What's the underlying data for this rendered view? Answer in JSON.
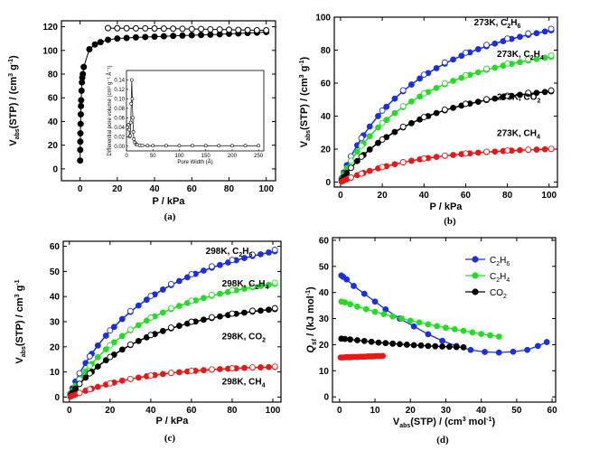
{
  "chart_data": [
    {
      "id": "a",
      "panel_label": "(a)",
      "type": "scatter",
      "xlabel": "P / kPa",
      "ylabel_main": "V",
      "ylabel_sub": "abs",
      "ylabel_rest": "(STP) / (cm",
      "ylabel_sup1": "3",
      "ylabel_mid": " g",
      "ylabel_sup2": "-1",
      "ylabel_end": ")",
      "xlim": [
        -10,
        105
      ],
      "ylim": [
        -10,
        125
      ],
      "xticks": [
        0,
        20,
        40,
        60,
        80,
        100
      ],
      "yticks": [
        0,
        20,
        40,
        60,
        80,
        100,
        120
      ],
      "series": [
        {
          "kind": "adsorption",
          "marker": "filled",
          "color": "#000000",
          "x": [
            0.05,
            0.1,
            0.15,
            0.2,
            0.3,
            0.4,
            0.5,
            0.6,
            0.8,
            1.0,
            1.2,
            1.5,
            2,
            5,
            8,
            11,
            15,
            20,
            25,
            30,
            35,
            40,
            45,
            50,
            55,
            60,
            65,
            70,
            75,
            80,
            85,
            90,
            95,
            100
          ],
          "y": [
            7,
            16,
            23,
            30,
            38,
            46,
            53,
            58,
            66,
            73,
            77,
            80,
            86,
            101,
            105,
            107,
            109,
            110,
            110.5,
            111,
            111.3,
            111.6,
            111.9,
            112.2,
            112.5,
            112.8,
            113,
            113.3,
            113.6,
            114,
            114.3,
            114.7,
            115,
            115.5
          ]
        },
        {
          "kind": "desorption",
          "marker": "open",
          "color": "#000000",
          "x": [
            100,
            95,
            90,
            85,
            80,
            75,
            70,
            65,
            60,
            55,
            50,
            45,
            40,
            35,
            30,
            25,
            20,
            15
          ],
          "y": [
            117,
            117,
            117.2,
            117.3,
            117.5,
            117.7,
            117.8,
            118,
            118,
            118.2,
            118.3,
            118.4,
            118.5,
            118.6,
            118.6,
            118.7,
            118.7,
            118.8
          ]
        }
      ],
      "inset": {
        "xlabel": "Pore Width (Å)",
        "ylabel": "Differential pore volume (cm³ g⁻¹ Å⁻¹)",
        "xlim": [
          0,
          260
        ],
        "ylim": [
          -0.01,
          0.16
        ],
        "xticks": [
          0,
          50,
          100,
          150,
          200,
          250
        ],
        "yticks": [
          0.0,
          0.02,
          0.04,
          0.06,
          0.08,
          0.1,
          0.12,
          0.14
        ],
        "x": [
          2,
          4,
          5,
          6,
          7,
          8,
          9,
          10,
          11,
          12,
          13,
          14,
          16,
          18,
          20,
          25,
          30,
          40,
          50,
          75,
          100,
          125,
          150,
          175,
          200,
          225,
          250
        ],
        "y": [
          0.04,
          0.045,
          0.035,
          0.02,
          0.022,
          0.05,
          0.09,
          0.14,
          0.1,
          0.06,
          0.03,
          0.015,
          0.008,
          0.004,
          0.003,
          0.002,
          0.0015,
          0.001,
          0.001,
          0.001,
          0.001,
          0.001,
          0.001,
          0.001,
          0.001,
          0.001,
          0.001
        ]
      }
    },
    {
      "id": "b",
      "panel_label": "(b)",
      "type": "line",
      "xlabel": "P / kPa",
      "ylabel_main": "V",
      "ylabel_sub": "abs",
      "ylabel_rest": "(STP) / (cm",
      "ylabel_sup1": "3",
      "ylabel_mid": " g",
      "ylabel_sup2": "-1",
      "ylabel_end": ")",
      "xlim": [
        -3,
        104
      ],
      "ylim": [
        -3,
        100
      ],
      "xticks": [
        0,
        20,
        40,
        60,
        80,
        100
      ],
      "yticks": [
        0,
        20,
        40,
        60,
        80,
        100
      ],
      "series": [
        {
          "label_pre": "273K, C",
          "label_sub": "2",
          "label_post": "H",
          "label_sub2": "6",
          "color": "#1a2fe0",
          "cap": 92,
          "k": 0.0155,
          "n": 0.86,
          "xmax": 101,
          "ann_x": 64,
          "ann_y": 95
        },
        {
          "label_pre": "273K, C",
          "label_sub": "2",
          "label_post": "H",
          "label_sub2": "4",
          "color": "#22dd22",
          "cap": 76,
          "k": 0.0155,
          "n": 0.86,
          "xmax": 101,
          "ann_x": 75,
          "ann_y": 76
        },
        {
          "label_pre": "273K, CO",
          "label_sub": "2",
          "label_post": "",
          "label_sub2": "",
          "color": "#000000",
          "cap": 55,
          "k": 0.0135,
          "n": 0.92,
          "xmax": 101,
          "ann_x": 75,
          "ann_y": 50
        },
        {
          "label_pre": "273K, CH",
          "label_sub": "4",
          "label_post": "",
          "label_sub2": "",
          "color": "#e81818",
          "cap": 20,
          "k": 0.0105,
          "n": 1.0,
          "xmax": 101,
          "ann_x": 75,
          "ann_y": 28
        }
      ]
    },
    {
      "id": "c",
      "panel_label": "(c)",
      "type": "line",
      "xlabel": "P / kPa",
      "ylabel_main": "V",
      "ylabel_sub": "abs",
      "ylabel_rest": "(STP) / cm",
      "ylabel_sup1": "3",
      "ylabel_mid": " g",
      "ylabel_sup2": "-1",
      "ylabel_end": "",
      "xlim": [
        -3,
        104
      ],
      "ylim": [
        -2,
        62
      ],
      "xticks": [
        0,
        20,
        40,
        60,
        80,
        100
      ],
      "yticks": [
        0,
        10,
        20,
        30,
        40,
        50,
        60
      ],
      "series": [
        {
          "label_pre": "298K, C",
          "label_sub": "2",
          "label_post": "H",
          "label_sub2": "6",
          "color": "#1a2fe0",
          "cap": 58,
          "k": 0.0145,
          "n": 0.86,
          "xmax": 101,
          "ann_x": 67,
          "ann_y": 57
        },
        {
          "label_pre": "298K, C",
          "label_sub": "2",
          "label_post": "H",
          "label_sub2": "4",
          "color": "#22dd22",
          "cap": 45,
          "k": 0.0135,
          "n": 0.9,
          "xmax": 101,
          "ann_x": 75,
          "ann_y": 44
        },
        {
          "label_pre": "298K, CO",
          "label_sub": "2",
          "label_post": "",
          "label_sub2": "",
          "color": "#000000",
          "cap": 35,
          "k": 0.0125,
          "n": 0.93,
          "xmax": 101,
          "ann_x": 75,
          "ann_y": 23
        },
        {
          "label_pre": "298K, CH",
          "label_sub": "4",
          "label_post": "",
          "label_sub2": "",
          "color": "#e81818",
          "cap": 12,
          "k": 0.0105,
          "n": 1.0,
          "xmax": 101,
          "ann_x": 75,
          "ann_y": 5
        }
      ]
    },
    {
      "id": "d",
      "panel_label": "(d)",
      "type": "line",
      "xlabel_main": "V",
      "xlabel_sub": "abs",
      "xlabel_rest": "(STP) / (cm",
      "xlabel_sup1": "3",
      "xlabel_mid": " mol",
      "xlabel_sup2": "-1",
      "xlabel_end": ")",
      "ylabel_main": "Q",
      "ylabel_sub": "st",
      "ylabel_rest": " / (kJ mol",
      "ylabel_sup": "-1",
      "ylabel_end": ")",
      "xlim": [
        -2,
        61
      ],
      "ylim": [
        -2,
        61
      ],
      "xticks": [
        0,
        10,
        20,
        30,
        40,
        50,
        60
      ],
      "yticks": [
        0,
        10,
        20,
        30,
        40,
        50,
        60
      ],
      "legend_position": "top-right",
      "series": [
        {
          "label_pre": "C",
          "label_sub": "2",
          "label_post": "H",
          "label_sub2": "6",
          "color": "#1a2fe0",
          "x": [
            0.5,
            1,
            2,
            4,
            7,
            10,
            13,
            17,
            21,
            25,
            29,
            33,
            37,
            41,
            45,
            49,
            53,
            56,
            58.5
          ],
          "y": [
            46.5,
            46,
            45,
            42.5,
            39.5,
            36.5,
            33.5,
            30,
            27,
            24,
            21.5,
            19.5,
            18,
            17.2,
            17,
            17.3,
            18,
            19.5,
            21
          ]
        },
        {
          "label_pre": "C",
          "label_sub": "2",
          "label_post": "H",
          "label_sub2": "4",
          "color": "#22dd22",
          "x": [
            0.5,
            1.5,
            3,
            5,
            7.5,
            10,
            12.5,
            15,
            17.5,
            20,
            22.5,
            25,
            27.5,
            30,
            32.5,
            35,
            37.5,
            40,
            42.5,
            45
          ],
          "y": [
            36.5,
            36.2,
            35.5,
            34.6,
            33.6,
            32.6,
            31.7,
            30.8,
            30,
            29.2,
            28.5,
            27.8,
            27.1,
            26.5,
            25.9,
            25.3,
            24.7,
            24.1,
            23.6,
            23.1
          ]
        },
        {
          "label_pre": "CO",
          "label_sub": "2",
          "label_post": "",
          "label_sub2": "",
          "color": "#000000",
          "x": [
            0.5,
            1.5,
            3,
            5,
            7,
            9,
            11,
            13,
            15,
            17,
            19,
            21,
            23,
            25,
            27,
            29,
            31,
            33,
            35
          ],
          "y": [
            22.3,
            22.2,
            22,
            21.7,
            21.4,
            21.1,
            20.8,
            20.6,
            20.4,
            20.2,
            20,
            19.8,
            19.7,
            19.5,
            19.4,
            19.3,
            19.2,
            19.1,
            19
          ]
        },
        {
          "label_pre": "",
          "label_sub": "",
          "label_post": "",
          "label_sub2": "",
          "color": "#e81818",
          "no_legend": true,
          "x": [
            0.3,
            1,
            1.7,
            2.4,
            3.1,
            3.8,
            4.5,
            5.2,
            5.9,
            6.6,
            7.3,
            8,
            8.7,
            9.4,
            10.1,
            10.8,
            11.5,
            12.2
          ],
          "y": [
            15.1,
            15.1,
            15.2,
            15.2,
            15.2,
            15.3,
            15.3,
            15.3,
            15.4,
            15.4,
            15.4,
            15.5,
            15.5,
            15.5,
            15.6,
            15.6,
            15.6,
            15.7
          ]
        }
      ]
    }
  ]
}
